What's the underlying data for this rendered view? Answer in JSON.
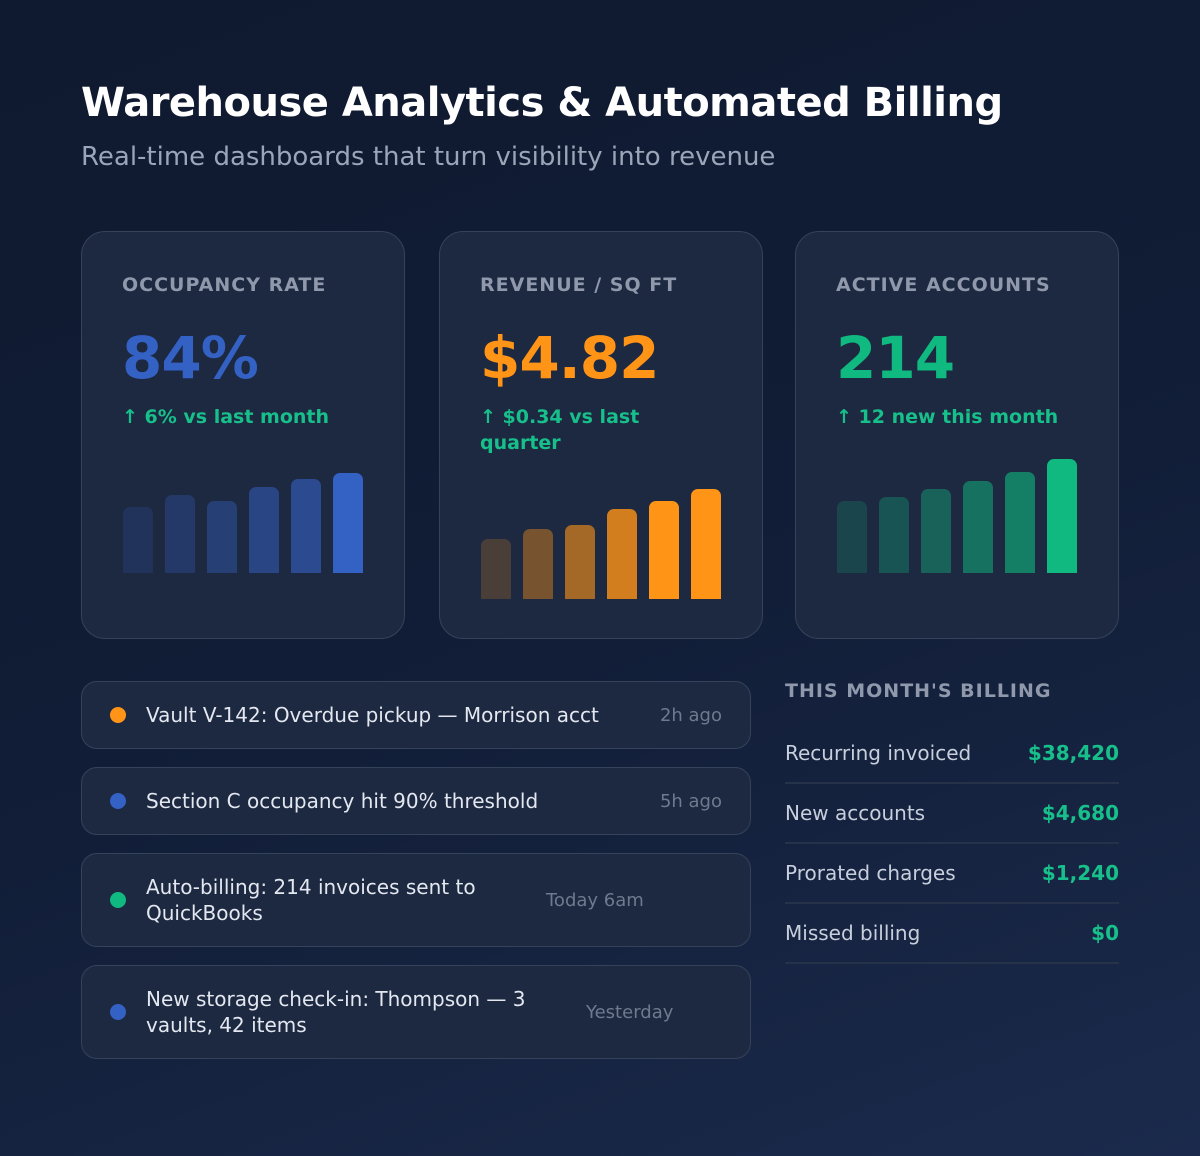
{
  "header": {
    "title": "Warehouse Analytics & Automated Billing",
    "subtitle": "Real-time dashboards that turn visibility into revenue"
  },
  "cards": [
    {
      "label": "OCCUPANCY RATE",
      "value": "84%",
      "delta": "↑ 6% vs last month",
      "color": "#3461c4",
      "bar_levels": [
        66,
        78,
        72,
        86,
        94,
        100
      ]
    },
    {
      "label": "REVENUE / SQ FT",
      "value": "$4.82",
      "delta": "↑ $0.34 vs last quarter",
      "color": "#ff9416",
      "bar_levels": [
        55,
        64,
        67,
        82,
        89,
        100
      ]
    },
    {
      "label": "ACTIVE ACCOUNTS",
      "value": "214",
      "delta": "↑ 12 new this month",
      "color": "#10b97f",
      "bar_levels": [
        63,
        67,
        74,
        81,
        89,
        100
      ]
    }
  ],
  "feed": [
    {
      "text": "Vault V-142: Overdue pickup — Morrison acct",
      "time": "2h ago",
      "color": "#ff9416"
    },
    {
      "text": "Section C occupancy hit 90% threshold",
      "time": "5h ago",
      "color": "#3461c4"
    },
    {
      "text": "Auto-billing: 214 invoices sent to QuickBooks",
      "time": "Today 6am",
      "color": "#10b97f"
    },
    {
      "text": "New storage check-in: Thompson — 3 vaults, 42 items",
      "time": "Yesterday",
      "color": "#3461c4"
    }
  ],
  "billing": {
    "title": "THIS MONTH'S BILLING",
    "rows": [
      {
        "label": "Recurring invoiced",
        "value": "$38,420"
      },
      {
        "label": "New accounts",
        "value": "$4,680"
      },
      {
        "label": "Prorated charges",
        "value": "$1,240"
      },
      {
        "label": "Missed billing",
        "value": "$0"
      }
    ]
  }
}
